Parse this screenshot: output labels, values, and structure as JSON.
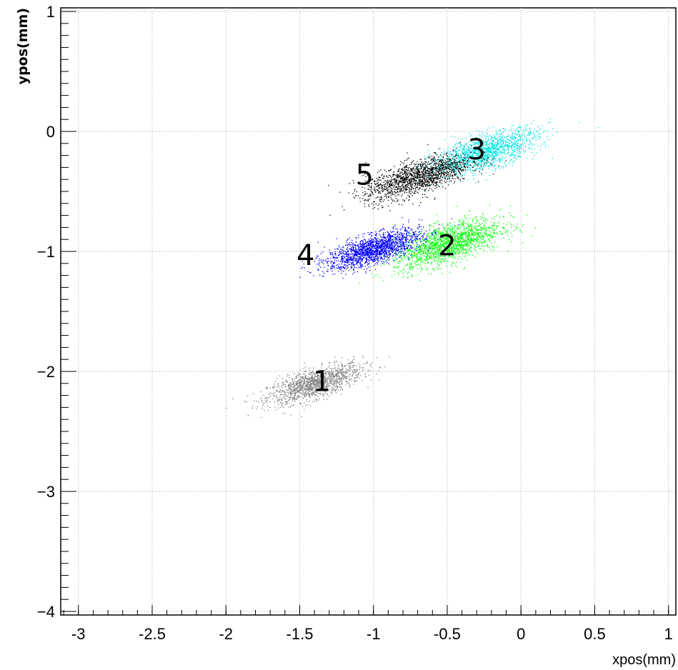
{
  "chart_data": {
    "type": "scatter",
    "title": "",
    "xlabel": "xpos(mm)",
    "ylabel": "ypos(mm)",
    "xlim": [
      -3.12,
      1.05
    ],
    "ylim": [
      -4.03,
      1.03
    ],
    "xticks": [
      -3,
      -2.5,
      -2,
      -1.5,
      -1,
      -0.5,
      0,
      0.5,
      1
    ],
    "xtick_labels": [
      "-3",
      "-2.5",
      "-2",
      "-1.5",
      "-1",
      "-0.5",
      "0",
      "0.5",
      "1"
    ],
    "yticks": [
      1,
      0,
      -1,
      -2,
      -3,
      -4
    ],
    "ytick_labels": [
      "1",
      "0",
      "−1",
      "−2",
      "−3",
      "−4"
    ],
    "grid": true,
    "series": [
      {
        "label": "1",
        "color": "#808080",
        "center": [
          -1.4,
          -2.1
        ],
        "spread": [
          0.16,
          0.06
        ],
        "count": 1400
      },
      {
        "label": "2",
        "color": "#00ff00",
        "center": [
          -0.5,
          -0.93
        ],
        "spread": [
          0.18,
          0.08
        ],
        "count": 1800
      },
      {
        "label": "3",
        "color": "#00e5e5",
        "center": [
          -0.25,
          -0.17
        ],
        "spread": [
          0.18,
          0.07
        ],
        "count": 1600
      },
      {
        "label": "4",
        "color": "#0000ff",
        "center": [
          -1.0,
          -0.98
        ],
        "spread": [
          0.16,
          0.06
        ],
        "count": 1800
      },
      {
        "label": "5",
        "color": "#000000",
        "center": [
          -0.7,
          -0.38
        ],
        "spread": [
          0.18,
          0.07
        ],
        "count": 1600
      }
    ],
    "annotations": [
      {
        "text": "1",
        "x": -1.35,
        "y": -2.08
      },
      {
        "text": "2",
        "x": -0.5,
        "y": -0.95
      },
      {
        "text": "3",
        "x": -0.3,
        "y": -0.15
      },
      {
        "text": "4",
        "x": -1.46,
        "y": -1.03
      },
      {
        "text": "5",
        "x": -1.06,
        "y": -0.36
      }
    ]
  }
}
